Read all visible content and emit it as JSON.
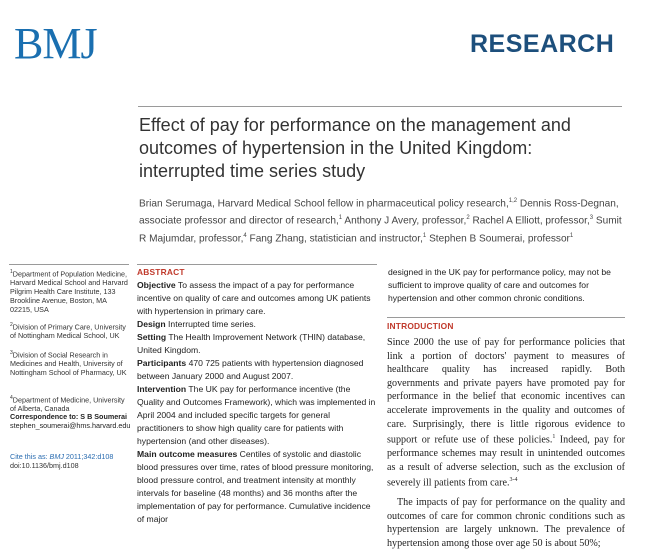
{
  "header": {
    "logo": "BMJ",
    "section": "RESEARCH"
  },
  "article": {
    "title": "Effect of pay for performance on the management and outcomes of hypertension in the United Kingdom: interrupted time series study",
    "authors": [
      {
        "name": "Brian Serumaga",
        "role": "Harvard Medical School fellow in pharmaceutical policy research",
        "sup": "1,2"
      },
      {
        "name": "Dennis Ross-Degnan",
        "role": "associate professor and director of research",
        "sup": "1"
      },
      {
        "name": "Anthony J Avery",
        "role": "professor",
        "sup": "2"
      },
      {
        "name": "Rachel A Elliott",
        "role": "professor",
        "sup": "3"
      },
      {
        "name": "Sumit R Majumdar",
        "role": "professor",
        "sup": "4"
      },
      {
        "name": "Fang Zhang",
        "role": "statistician and instructor",
        "sup": "1"
      },
      {
        "name": "Stephen B Soumerai",
        "role": "professor",
        "sup": "1"
      }
    ]
  },
  "sidebar": {
    "affiliations": [
      {
        "num": "1",
        "text": "Department of Population Medicine, Harvard Medical School and Harvard Pilgrim Health Care Institute, 133 Brookline Avenue, Boston, MA 02215, USA"
      },
      {
        "num": "2",
        "text": "Division of Primary Care, University of Nottingham Medical School, UK"
      },
      {
        "num": "3",
        "text": "Division of Social Research in Medicines and Health, University of Nottingham School of Pharmacy, UK"
      },
      {
        "num": "4",
        "text": "Department of Medicine, University of Alberta, Canada"
      }
    ],
    "correspondence_label": "Correspondence to: S B Soumerai",
    "correspondence_email": "stephen_soumerai@hms.harvard.edu",
    "cite_prefix": "Cite this as: ",
    "cite_journal": "BMJ",
    "cite_rest": " 2011;342:d108",
    "doi": "doi:10.1136/bmj.d108"
  },
  "abstract": {
    "heading": "ABSTRACT",
    "sections": [
      {
        "label": "Objective",
        "text": " To assess the impact of a pay for performance incentive on quality of care and outcomes among UK patients with hypertension in primary care."
      },
      {
        "label": "Design",
        "text": " Interrupted time series."
      },
      {
        "label": "Setting",
        "text": " The Health Improvement Network (THIN) database, United Kingdom."
      },
      {
        "label": "Participants",
        "text": " 470 725 patients with hypertension diagnosed between January 2000 and August 2007."
      },
      {
        "label": "Intervention",
        "text": " The UK pay for performance incentive (the Quality and Outcomes Framework), which was implemented in April 2004 and included specific targets for general practitioners to show high quality care for patients with hypertension (and other diseases)."
      },
      {
        "label": "Main outcome measures",
        "text": " Centiles of systolic and diastolic blood pressures over time, rates of blood pressure monitoring, blood pressure control, and treatment intensity at monthly intervals for baseline (48 months) and 36 months after the implementation of pay for performance. Cumulative incidence of major"
      }
    ],
    "continued": "designed in the UK pay for performance policy, may not be sufficient to improve quality of care and outcomes for hypertension and other common chronic conditions."
  },
  "introduction": {
    "heading": "INTRODUCTION",
    "p1": "Since 2000 the use of pay for performance policies that link a portion of doctors' payment to measures of healthcare quality has increased rapidly. Both governments and private payers have promoted pay for performance in the belief that economic incentives can accelerate improvements in the quality and outcomes of care. Surprisingly, there is little rigorous evidence to support or refute use of these policies.",
    "p1_sup1": "1",
    "p1b": " Indeed, pay for performance schemes may result in unintended outcomes as a result of adverse selection, such as the exclusion of severely ill patients from care.",
    "p1_sup2": "3-4",
    "p2": "The impacts of pay for performance on the quality and outcomes of care for common chronic conditions such as hypertension are largely unknown. The prevalence of hypertension among those over age 50 is about 50%;"
  }
}
